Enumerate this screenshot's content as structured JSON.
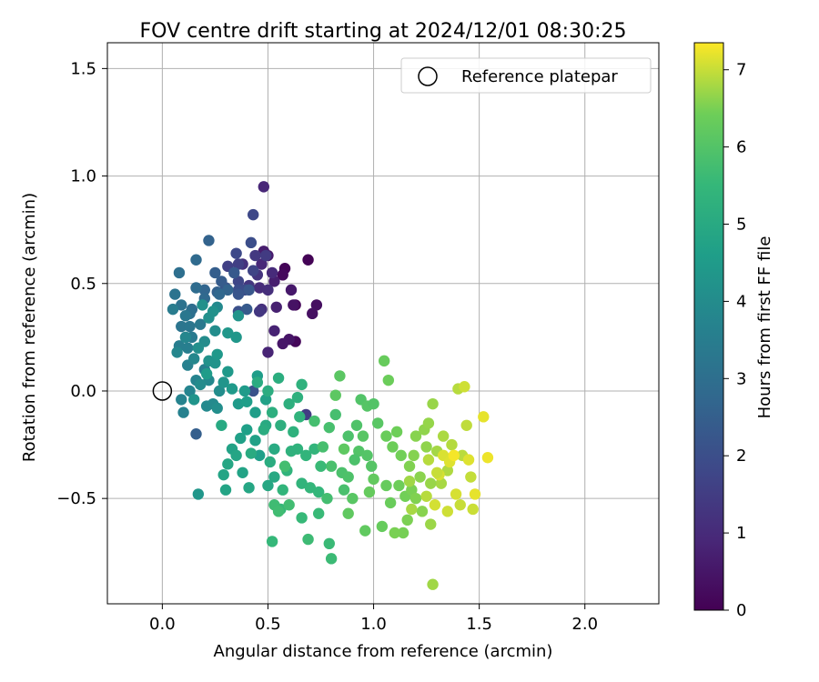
{
  "chart_data": {
    "type": "scatter",
    "title": "FOV centre drift starting at 2024/12/01 08:30:25",
    "xlabel": "Angular distance from reference (arcmin)",
    "ylabel": "Rotation from reference (arcmin)",
    "xlim": [
      -0.26,
      2.35
    ],
    "ylim": [
      -0.99,
      1.62
    ],
    "xticks": [
      0.0,
      0.5,
      1.0,
      1.5,
      2.0
    ],
    "xtick_labels": [
      "0.0",
      "0.5",
      "1.0",
      "1.5",
      "2.0"
    ],
    "yticks": [
      -0.5,
      0.0,
      0.5,
      1.0,
      1.5
    ],
    "ytick_labels": [
      "−0.5",
      "0.0",
      "0.5",
      "1.0",
      "1.5"
    ],
    "grid": true,
    "legend": {
      "placement": "top-right",
      "entries": [
        "Reference platepar"
      ]
    },
    "reference_point": {
      "x": 0.0,
      "y": 0.0,
      "label": "Reference platepar"
    },
    "colorbar": {
      "label": "Hours from first FF file",
      "colormap": "viridis",
      "range": [
        0,
        7.35
      ],
      "ticks": [
        0,
        1,
        2,
        3,
        4,
        5,
        6,
        7
      ],
      "tick_labels": [
        "0",
        "1",
        "2",
        "3",
        "4",
        "5",
        "6",
        "7"
      ]
    },
    "points": [
      {
        "x": 0.69,
        "y": 0.61,
        "c": 0.05
      },
      {
        "x": 0.58,
        "y": 0.57,
        "c": 0.08
      },
      {
        "x": 0.63,
        "y": 0.4,
        "c": 0.12
      },
      {
        "x": 0.63,
        "y": 0.23,
        "c": 0.15
      },
      {
        "x": 0.57,
        "y": 0.54,
        "c": 0.2
      },
      {
        "x": 0.73,
        "y": 0.4,
        "c": 0.3
      },
      {
        "x": 0.71,
        "y": 0.36,
        "c": 0.35
      },
      {
        "x": 0.62,
        "y": 0.4,
        "c": 0.4
      },
      {
        "x": 0.6,
        "y": 0.24,
        "c": 0.45
      },
      {
        "x": 0.57,
        "y": 0.22,
        "c": 0.5
      },
      {
        "x": 0.61,
        "y": 0.47,
        "c": 0.55
      },
      {
        "x": 0.5,
        "y": 0.63,
        "c": 0.6
      },
      {
        "x": 0.48,
        "y": 0.65,
        "c": 0.65
      },
      {
        "x": 0.53,
        "y": 0.51,
        "c": 0.7
      },
      {
        "x": 0.54,
        "y": 0.39,
        "c": 0.75
      },
      {
        "x": 0.53,
        "y": 0.28,
        "c": 0.8
      },
      {
        "x": 0.5,
        "y": 0.18,
        "c": 0.85
      },
      {
        "x": 0.48,
        "y": 0.95,
        "c": 0.9
      },
      {
        "x": 0.47,
        "y": 0.59,
        "c": 0.95
      },
      {
        "x": 0.52,
        "y": 0.55,
        "c": 1.0
      },
      {
        "x": 0.46,
        "y": 0.48,
        "c": 1.05
      },
      {
        "x": 0.5,
        "y": 0.47,
        "c": 1.1
      },
      {
        "x": 0.47,
        "y": 0.38,
        "c": 1.15
      },
      {
        "x": 0.38,
        "y": 0.59,
        "c": 1.2
      },
      {
        "x": 0.45,
        "y": 0.54,
        "c": 1.25
      },
      {
        "x": 0.41,
        "y": 0.49,
        "c": 1.3
      },
      {
        "x": 0.46,
        "y": 0.37,
        "c": 1.35
      },
      {
        "x": 0.44,
        "y": 0.63,
        "c": 1.4
      },
      {
        "x": 0.49,
        "y": 0.63,
        "c": 1.45
      },
      {
        "x": 0.68,
        "y": -0.11,
        "c": 1.5
      },
      {
        "x": 0.36,
        "y": 0.59,
        "c": 1.55
      },
      {
        "x": 0.31,
        "y": 0.58,
        "c": 1.6
      },
      {
        "x": 0.43,
        "y": 0.56,
        "c": 1.7
      },
      {
        "x": 0.36,
        "y": 0.51,
        "c": 1.75
      },
      {
        "x": 0.43,
        "y": 0.82,
        "c": 1.8
      },
      {
        "x": 0.35,
        "y": 0.64,
        "c": 1.85
      },
      {
        "x": 0.39,
        "y": 0.47,
        "c": 1.9
      },
      {
        "x": 0.36,
        "y": 0.47,
        "c": 1.95
      },
      {
        "x": 0.42,
        "y": 0.69,
        "c": 2.0
      },
      {
        "x": 0.36,
        "y": 0.37,
        "c": 2.05
      },
      {
        "x": 0.43,
        "y": 0.0,
        "c": 2.1
      },
      {
        "x": 0.3,
        "y": 0.48,
        "c": 2.15
      },
      {
        "x": 0.36,
        "y": 0.45,
        "c": 2.2
      },
      {
        "x": 0.41,
        "y": 0.47,
        "c": 2.25
      },
      {
        "x": 0.34,
        "y": 0.55,
        "c": 2.3
      },
      {
        "x": 0.4,
        "y": 0.38,
        "c": 2.35
      },
      {
        "x": 0.28,
        "y": 0.51,
        "c": 2.4
      },
      {
        "x": 0.25,
        "y": 0.55,
        "c": 2.45
      },
      {
        "x": 0.16,
        "y": -0.2,
        "c": 2.5
      },
      {
        "x": 0.26,
        "y": 0.46,
        "c": 2.55
      },
      {
        "x": 0.22,
        "y": 0.7,
        "c": 2.6
      },
      {
        "x": 0.31,
        "y": 0.47,
        "c": 2.65
      },
      {
        "x": 0.2,
        "y": 0.47,
        "c": 2.7
      },
      {
        "x": 0.27,
        "y": 0.45,
        "c": 2.75
      },
      {
        "x": 0.2,
        "y": 0.43,
        "c": 2.8
      },
      {
        "x": 0.16,
        "y": 0.61,
        "c": 2.85
      },
      {
        "x": 0.16,
        "y": 0.48,
        "c": 2.9
      },
      {
        "x": 0.14,
        "y": 0.38,
        "c": 2.95
      },
      {
        "x": 0.08,
        "y": 0.55,
        "c": 3.0
      },
      {
        "x": 0.13,
        "y": 0.36,
        "c": 3.05
      },
      {
        "x": 0.09,
        "y": 0.4,
        "c": 3.1
      },
      {
        "x": 0.06,
        "y": 0.45,
        "c": 3.15
      },
      {
        "x": 0.09,
        "y": 0.3,
        "c": 3.2
      },
      {
        "x": 0.13,
        "y": 0.3,
        "c": 3.25
      },
      {
        "x": 0.11,
        "y": 0.35,
        "c": 3.3
      },
      {
        "x": 0.18,
        "y": 0.31,
        "c": 3.35
      },
      {
        "x": 0.14,
        "y": 0.25,
        "c": 3.4
      },
      {
        "x": 0.05,
        "y": 0.38,
        "c": 3.45
      },
      {
        "x": 0.08,
        "y": 0.21,
        "c": 3.5
      },
      {
        "x": 0.12,
        "y": 0.2,
        "c": 3.55
      },
      {
        "x": 0.12,
        "y": 0.12,
        "c": 3.6
      },
      {
        "x": 0.2,
        "y": 0.1,
        "c": 3.62
      },
      {
        "x": 0.1,
        "y": -0.1,
        "c": 3.65
      },
      {
        "x": 0.16,
        "y": 0.05,
        "c": 3.7
      },
      {
        "x": 0.09,
        "y": -0.04,
        "c": 3.72
      },
      {
        "x": 0.13,
        "y": 0.0,
        "c": 3.75
      },
      {
        "x": 0.07,
        "y": 0.18,
        "c": 3.8
      },
      {
        "x": 0.11,
        "y": 0.25,
        "c": 3.82
      },
      {
        "x": 0.15,
        "y": 0.15,
        "c": 3.85
      },
      {
        "x": 0.22,
        "y": 0.05,
        "c": 3.88
      },
      {
        "x": 0.26,
        "y": 0.39,
        "c": 3.9
      },
      {
        "x": 0.21,
        "y": -0.07,
        "c": 3.92
      },
      {
        "x": 0.24,
        "y": -0.06,
        "c": 3.95
      },
      {
        "x": 0.18,
        "y": 0.03,
        "c": 3.98
      },
      {
        "x": 0.2,
        "y": 0.23,
        "c": 4.0
      },
      {
        "x": 0.25,
        "y": 0.28,
        "c": 4.02
      },
      {
        "x": 0.27,
        "y": 0.0,
        "c": 4.05
      },
      {
        "x": 0.26,
        "y": -0.08,
        "c": 4.08
      },
      {
        "x": 0.17,
        "y": 0.2,
        "c": 4.1
      },
      {
        "x": 0.22,
        "y": 0.34,
        "c": 4.12
      },
      {
        "x": 0.19,
        "y": 0.4,
        "c": 4.15
      },
      {
        "x": 0.24,
        "y": 0.37,
        "c": 4.18
      },
      {
        "x": 0.22,
        "y": 0.14,
        "c": 4.2
      },
      {
        "x": 0.25,
        "y": 0.13,
        "c": 4.22
      },
      {
        "x": 0.36,
        "y": 0.35,
        "c": 4.25
      },
      {
        "x": 0.15,
        "y": -0.04,
        "c": 4.28
      },
      {
        "x": 0.29,
        "y": 0.04,
        "c": 4.3
      },
      {
        "x": 0.17,
        "y": -0.48,
        "c": 4.32
      },
      {
        "x": 0.31,
        "y": 0.27,
        "c": 4.35
      },
      {
        "x": 0.35,
        "y": 0.25,
        "c": 4.38
      },
      {
        "x": 0.26,
        "y": 0.17,
        "c": 4.4
      },
      {
        "x": 0.31,
        "y": 0.09,
        "c": 4.42
      },
      {
        "x": 0.33,
        "y": 0.01,
        "c": 4.45
      },
      {
        "x": 0.39,
        "y": 0.0,
        "c": 4.48
      },
      {
        "x": 0.36,
        "y": -0.06,
        "c": 4.5
      },
      {
        "x": 0.21,
        "y": 0.08,
        "c": 4.52
      },
      {
        "x": 0.45,
        "y": 0.07,
        "c": 4.55
      },
      {
        "x": 0.44,
        "y": -0.1,
        "c": 4.58
      },
      {
        "x": 0.4,
        "y": -0.05,
        "c": 4.6
      },
      {
        "x": 0.46,
        "y": -0.3,
        "c": 4.62
      },
      {
        "x": 0.4,
        "y": -0.18,
        "c": 4.65
      },
      {
        "x": 0.37,
        "y": -0.22,
        "c": 4.68
      },
      {
        "x": 0.44,
        "y": -0.23,
        "c": 4.7
      },
      {
        "x": 0.49,
        "y": -0.04,
        "c": 4.72
      },
      {
        "x": 0.33,
        "y": -0.27,
        "c": 4.75
      },
      {
        "x": 0.38,
        "y": -0.38,
        "c": 4.78
      },
      {
        "x": 0.29,
        "y": -0.39,
        "c": 4.8
      },
      {
        "x": 0.3,
        "y": -0.46,
        "c": 4.82
      },
      {
        "x": 0.35,
        "y": -0.3,
        "c": 4.85
      },
      {
        "x": 0.31,
        "y": -0.34,
        "c": 4.88
      },
      {
        "x": 0.41,
        "y": -0.45,
        "c": 4.9
      },
      {
        "x": 0.5,
        "y": -0.44,
        "c": 4.92
      },
      {
        "x": 0.53,
        "y": -0.4,
        "c": 4.95
      },
      {
        "x": 0.28,
        "y": -0.16,
        "c": 4.98
      },
      {
        "x": 0.49,
        "y": -0.16,
        "c": 5.0
      },
      {
        "x": 0.53,
        "y": -0.27,
        "c": 5.02
      },
      {
        "x": 0.42,
        "y": -0.29,
        "c": 5.05
      },
      {
        "x": 0.45,
        "y": 0.04,
        "c": 5.08
      },
      {
        "x": 0.48,
        "y": -0.18,
        "c": 5.1
      },
      {
        "x": 0.5,
        "y": 0.0,
        "c": 5.12
      },
      {
        "x": 0.55,
        "y": 0.06,
        "c": 5.15
      },
      {
        "x": 0.52,
        "y": -0.1,
        "c": 5.18
      },
      {
        "x": 0.56,
        "y": -0.16,
        "c": 5.2
      },
      {
        "x": 0.6,
        "y": -0.06,
        "c": 5.22
      },
      {
        "x": 0.64,
        "y": -0.03,
        "c": 5.25
      },
      {
        "x": 0.62,
        "y": -0.19,
        "c": 5.28
      },
      {
        "x": 0.66,
        "y": 0.03,
        "c": 5.3
      },
      {
        "x": 0.64,
        "y": -0.27,
        "c": 5.32
      },
      {
        "x": 0.59,
        "y": -0.37,
        "c": 5.35
      },
      {
        "x": 0.66,
        "y": -0.43,
        "c": 5.38
      },
      {
        "x": 0.68,
        "y": -0.3,
        "c": 5.4
      },
      {
        "x": 0.72,
        "y": -0.27,
        "c": 5.42
      },
      {
        "x": 0.7,
        "y": -0.45,
        "c": 5.45
      },
      {
        "x": 0.74,
        "y": -0.47,
        "c": 5.48
      },
      {
        "x": 0.56,
        "y": -0.55,
        "c": 5.5
      },
      {
        "x": 0.52,
        "y": -0.7,
        "c": 5.52
      },
      {
        "x": 0.66,
        "y": -0.59,
        "c": 5.55
      },
      {
        "x": 0.74,
        "y": -0.57,
        "c": 5.58
      },
      {
        "x": 0.79,
        "y": -0.71,
        "c": 5.6
      },
      {
        "x": 0.8,
        "y": -0.78,
        "c": 5.62
      },
      {
        "x": 0.69,
        "y": -0.69,
        "c": 5.65
      },
      {
        "x": 0.53,
        "y": -0.53,
        "c": 5.68
      },
      {
        "x": 0.55,
        "y": -0.56,
        "c": 5.7
      },
      {
        "x": 0.6,
        "y": -0.53,
        "c": 5.72
      },
      {
        "x": 0.58,
        "y": -0.35,
        "c": 5.75
      },
      {
        "x": 0.72,
        "y": -0.14,
        "c": 5.78
      },
      {
        "x": 0.76,
        "y": -0.26,
        "c": 5.8
      },
      {
        "x": 0.79,
        "y": -0.17,
        "c": 5.82
      },
      {
        "x": 0.8,
        "y": -0.35,
        "c": 5.85
      },
      {
        "x": 0.85,
        "y": -0.38,
        "c": 5.88
      },
      {
        "x": 0.88,
        "y": -0.21,
        "c": 5.9
      },
      {
        "x": 0.88,
        "y": -0.4,
        "c": 5.92
      },
      {
        "x": 0.92,
        "y": -0.16,
        "c": 5.95
      },
      {
        "x": 0.94,
        "y": -0.04,
        "c": 5.98
      },
      {
        "x": 0.93,
        "y": -0.28,
        "c": 6.0
      },
      {
        "x": 0.97,
        "y": -0.3,
        "c": 6.02
      },
      {
        "x": 0.97,
        "y": -0.07,
        "c": 6.05
      },
      {
        "x": 0.95,
        "y": -0.21,
        "c": 6.08
      },
      {
        "x": 0.9,
        "y": -0.5,
        "c": 6.1
      },
      {
        "x": 0.84,
        "y": 0.07,
        "c": 6.12
      },
      {
        "x": 0.82,
        "y": -0.02,
        "c": 6.15
      },
      {
        "x": 0.86,
        "y": -0.27,
        "c": 6.18
      },
      {
        "x": 0.88,
        "y": -0.57,
        "c": 6.2
      },
      {
        "x": 0.96,
        "y": -0.65,
        "c": 6.22
      },
      {
        "x": 1.0,
        "y": -0.41,
        "c": 6.25
      },
      {
        "x": 0.98,
        "y": -0.47,
        "c": 6.28
      },
      {
        "x": 1.04,
        "y": -0.63,
        "c": 6.3
      },
      {
        "x": 1.05,
        "y": 0.14,
        "c": 6.32
      },
      {
        "x": 1.06,
        "y": -0.21,
        "c": 6.35
      },
      {
        "x": 1.07,
        "y": 0.05,
        "c": 6.38
      },
      {
        "x": 1.09,
        "y": -0.26,
        "c": 6.4
      },
      {
        "x": 1.11,
        "y": -0.19,
        "c": 6.42
      },
      {
        "x": 1.13,
        "y": -0.3,
        "c": 6.45
      },
      {
        "x": 1.14,
        "y": -0.66,
        "c": 6.48
      },
      {
        "x": 1.1,
        "y": -0.66,
        "c": 6.5
      },
      {
        "x": 1.16,
        "y": -0.6,
        "c": 6.52
      },
      {
        "x": 1.17,
        "y": -0.35,
        "c": 6.55
      },
      {
        "x": 1.19,
        "y": -0.3,
        "c": 6.58
      },
      {
        "x": 1.2,
        "y": -0.21,
        "c": 6.6
      },
      {
        "x": 1.22,
        "y": -0.4,
        "c": 6.62
      },
      {
        "x": 1.24,
        "y": -0.18,
        "c": 6.65
      },
      {
        "x": 1.26,
        "y": -0.15,
        "c": 6.68
      },
      {
        "x": 1.28,
        "y": -0.06,
        "c": 6.7
      },
      {
        "x": 1.27,
        "y": -0.62,
        "c": 6.72
      },
      {
        "x": 1.28,
        "y": -0.9,
        "c": 6.75
      },
      {
        "x": 1.3,
        "y": -0.28,
        "c": 6.78
      },
      {
        "x": 1.32,
        "y": -0.43,
        "c": 6.8
      },
      {
        "x": 1.33,
        "y": -0.21,
        "c": 6.82
      },
      {
        "x": 1.35,
        "y": -0.37,
        "c": 6.85
      },
      {
        "x": 1.37,
        "y": -0.25,
        "c": 6.88
      },
      {
        "x": 1.4,
        "y": 0.01,
        "c": 6.9
      },
      {
        "x": 1.42,
        "y": -0.3,
        "c": 6.92
      },
      {
        "x": 1.44,
        "y": -0.16,
        "c": 6.95
      },
      {
        "x": 1.46,
        "y": -0.4,
        "c": 6.98
      },
      {
        "x": 1.41,
        "y": -0.53,
        "c": 7.0
      },
      {
        "x": 1.47,
        "y": -0.55,
        "c": 7.02
      },
      {
        "x": 1.43,
        "y": 0.02,
        "c": 7.05
      },
      {
        "x": 1.29,
        "y": -0.53,
        "c": 7.08
      },
      {
        "x": 1.31,
        "y": -0.39,
        "c": 7.1
      },
      {
        "x": 1.33,
        "y": -0.3,
        "c": 7.12
      },
      {
        "x": 1.36,
        "y": -0.33,
        "c": 7.15
      },
      {
        "x": 1.52,
        "y": -0.12,
        "c": 7.2
      },
      {
        "x": 1.54,
        "y": -0.31,
        "c": 7.25
      },
      {
        "x": 1.38,
        "y": -0.3,
        "c": 7.3
      },
      {
        "x": 1.0,
        "y": -0.06,
        "c": 6.0
      },
      {
        "x": 1.02,
        "y": -0.15,
        "c": 6.1
      },
      {
        "x": 0.99,
        "y": -0.35,
        "c": 6.05
      },
      {
        "x": 1.06,
        "y": -0.44,
        "c": 6.3
      },
      {
        "x": 1.08,
        "y": -0.52,
        "c": 6.35
      },
      {
        "x": 1.12,
        "y": -0.44,
        "c": 6.4
      },
      {
        "x": 1.15,
        "y": -0.49,
        "c": 6.45
      },
      {
        "x": 1.18,
        "y": -0.46,
        "c": 6.5
      },
      {
        "x": 1.2,
        "y": -0.5,
        "c": 6.55
      },
      {
        "x": 1.23,
        "y": -0.56,
        "c": 6.6
      },
      {
        "x": 1.25,
        "y": -0.26,
        "c": 6.65
      },
      {
        "x": 1.27,
        "y": -0.43,
        "c": 6.7
      },
      {
        "x": 1.18,
        "y": -0.55,
        "c": 6.8
      },
      {
        "x": 1.25,
        "y": -0.49,
        "c": 6.9
      },
      {
        "x": 1.3,
        "y": -0.38,
        "c": 7.0
      },
      {
        "x": 1.35,
        "y": -0.56,
        "c": 7.05
      },
      {
        "x": 1.39,
        "y": -0.48,
        "c": 7.1
      },
      {
        "x": 1.45,
        "y": -0.32,
        "c": 7.15
      },
      {
        "x": 1.48,
        "y": -0.48,
        "c": 7.2
      },
      {
        "x": 1.26,
        "y": -0.32,
        "c": 6.9
      },
      {
        "x": 1.17,
        "y": -0.42,
        "c": 6.75
      },
      {
        "x": 0.91,
        "y": -0.32,
        "c": 5.9
      },
      {
        "x": 0.86,
        "y": -0.46,
        "c": 5.85
      },
      {
        "x": 0.78,
        "y": -0.5,
        "c": 5.75
      },
      {
        "x": 0.82,
        "y": -0.11,
        "c": 5.8
      },
      {
        "x": 0.75,
        "y": -0.35,
        "c": 5.6
      },
      {
        "x": 0.65,
        "y": -0.12,
        "c": 5.35
      },
      {
        "x": 0.61,
        "y": -0.28,
        "c": 5.3
      },
      {
        "x": 0.57,
        "y": -0.46,
        "c": 5.4
      },
      {
        "x": 0.51,
        "y": -0.33,
        "c": 5.1
      }
    ]
  }
}
